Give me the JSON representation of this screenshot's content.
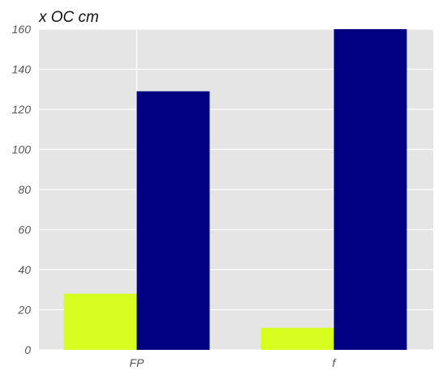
{
  "chart_data": {
    "type": "bar",
    "title": "x OC cm",
    "xlabel": "",
    "ylabel": "",
    "categories": [
      "FP",
      "f"
    ],
    "series": [
      {
        "values": [
          28,
          11
        ],
        "color": "#d6ff1f"
      },
      {
        "values": [
          129,
          160
        ],
        "color": "#000080"
      }
    ],
    "ylim": [
      0,
      160
    ],
    "yticks": [
      0,
      20,
      40,
      60,
      80,
      100,
      120,
      140,
      160
    ],
    "grid": true,
    "background": "#e5e5e5",
    "legend": "none"
  }
}
